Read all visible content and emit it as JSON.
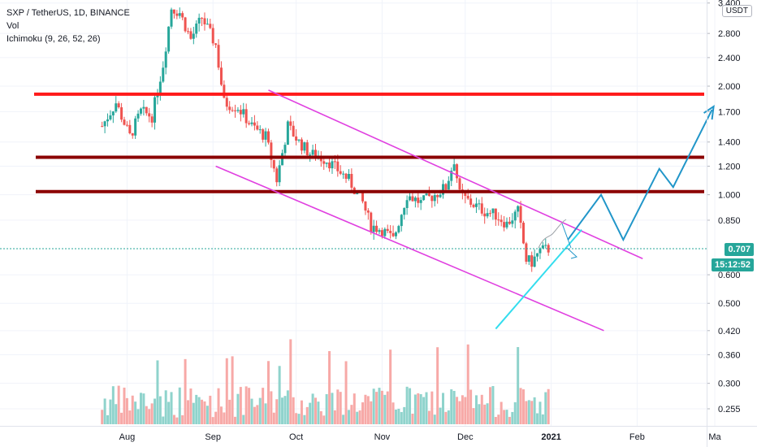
{
  "legend": {
    "symbol_line": "SXP / TetherUS, 1D, BINANCE",
    "volume_label": "Vol",
    "indicator_label": "Ichimoku (9, 26, 52, 26)"
  },
  "currency_button": "USDT",
  "price_badge": "0.707",
  "countdown_badge": "15:12:52",
  "colors": {
    "up": "#26a69a",
    "down": "#ef5350",
    "vol_up": "#8fd3cc",
    "vol_down": "#f7a9a7",
    "red_line": "#ff1a1a",
    "dark_red_line": "#8b0000",
    "channel": "#e040e0",
    "trend_line": "#33ddee",
    "projection": "#2196c9",
    "badge": "#26a69a"
  },
  "chart_data": {
    "type": "candlestick",
    "y_scale": "log",
    "y_ticks": [
      "0.255",
      "0.300",
      "0.360",
      "0.420",
      "0.500",
      "0.600",
      "0.850",
      "1.000",
      "1.200",
      "1.400",
      "1.700",
      "2.000",
      "2.400",
      "2.800",
      "3.400"
    ],
    "x_ticks": [
      "Aug",
      "Sep",
      "Oct",
      "Nov",
      "Dec",
      "2021",
      "Feb",
      "Ma"
    ],
    "last_price": 0.707,
    "date_range": [
      "2020-07-23",
      "2020-12-31"
    ],
    "price_path": [
      {
        "date": "2020-07-23",
        "price": 1.55
      },
      {
        "date": "2020-07-28",
        "price": 1.8
      },
      {
        "date": "2020-08-02",
        "price": 1.45
      },
      {
        "date": "2020-08-06",
        "price": 1.7
      },
      {
        "date": "2020-08-10",
        "price": 1.65
      },
      {
        "date": "2020-08-14",
        "price": 2.3
      },
      {
        "date": "2020-08-17",
        "price": 3.3
      },
      {
        "date": "2020-08-20",
        "price": 3.2
      },
      {
        "date": "2020-08-24",
        "price": 2.7
      },
      {
        "date": "2020-08-28",
        "price": 3.1
      },
      {
        "date": "2020-09-02",
        "price": 2.6
      },
      {
        "date": "2020-09-05",
        "price": 1.8
      },
      {
        "date": "2020-09-10",
        "price": 1.75
      },
      {
        "date": "2020-09-15",
        "price": 1.55
      },
      {
        "date": "2020-09-20",
        "price": 1.45
      },
      {
        "date": "2020-09-24",
        "price": 1.1
      },
      {
        "date": "2020-09-28",
        "price": 1.55
      },
      {
        "date": "2020-10-02",
        "price": 1.4
      },
      {
        "date": "2020-10-06",
        "price": 1.3
      },
      {
        "date": "2020-10-12",
        "price": 1.25
      },
      {
        "date": "2020-10-20",
        "price": 1.1
      },
      {
        "date": "2020-10-25",
        "price": 0.95
      },
      {
        "date": "2020-10-28",
        "price": 0.82
      },
      {
        "date": "2020-11-01",
        "price": 0.8
      },
      {
        "date": "2020-11-05",
        "price": 0.75
      },
      {
        "date": "2020-11-10",
        "price": 1.0
      },
      {
        "date": "2020-11-15",
        "price": 0.95
      },
      {
        "date": "2020-11-20",
        "price": 1.0
      },
      {
        "date": "2020-11-24",
        "price": 1.05
      },
      {
        "date": "2020-11-27",
        "price": 1.25
      },
      {
        "date": "2020-11-29",
        "price": 1.0
      },
      {
        "date": "2020-12-03",
        "price": 0.95
      },
      {
        "date": "2020-12-08",
        "price": 0.9
      },
      {
        "date": "2020-12-12",
        "price": 0.88
      },
      {
        "date": "2020-12-16",
        "price": 0.83
      },
      {
        "date": "2020-12-20",
        "price": 0.9
      },
      {
        "date": "2020-12-23",
        "price": 0.66
      },
      {
        "date": "2020-12-25",
        "price": 0.65
      },
      {
        "date": "2020-12-28",
        "price": 0.7
      },
      {
        "date": "2020-12-31",
        "price": 0.707
      }
    ],
    "horizontal_levels": [
      {
        "price": 1.9,
        "style": "red"
      },
      {
        "price": 1.27,
        "style": "dark-red"
      },
      {
        "price": 1.02,
        "style": "dark-red"
      }
    ],
    "channel_lines": [
      {
        "from": {
          "date": "2020-09-21",
          "price": 1.95
        },
        "to": {
          "date": "2021-02-03",
          "price": 0.665
        }
      },
      {
        "from": {
          "date": "2020-09-02",
          "price": 1.2
        },
        "to": {
          "date": "2021-01-20",
          "price": 0.42
        }
      }
    ],
    "trend_line": {
      "from": {
        "date": "2020-12-12",
        "price": 0.425
      },
      "to": {
        "date": "2021-01-12",
        "price": 0.8
      }
    },
    "projection_path": [
      {
        "date": "2021-01-07",
        "price": 0.75
      },
      {
        "date": "2021-01-19",
        "price": 1.0
      },
      {
        "date": "2021-01-27",
        "price": 0.75
      },
      {
        "date": "2021-02-09",
        "price": 1.18
      },
      {
        "date": "2021-02-14",
        "price": 1.05
      },
      {
        "date": "2021-02-28",
        "price": 1.72
      }
    ]
  }
}
